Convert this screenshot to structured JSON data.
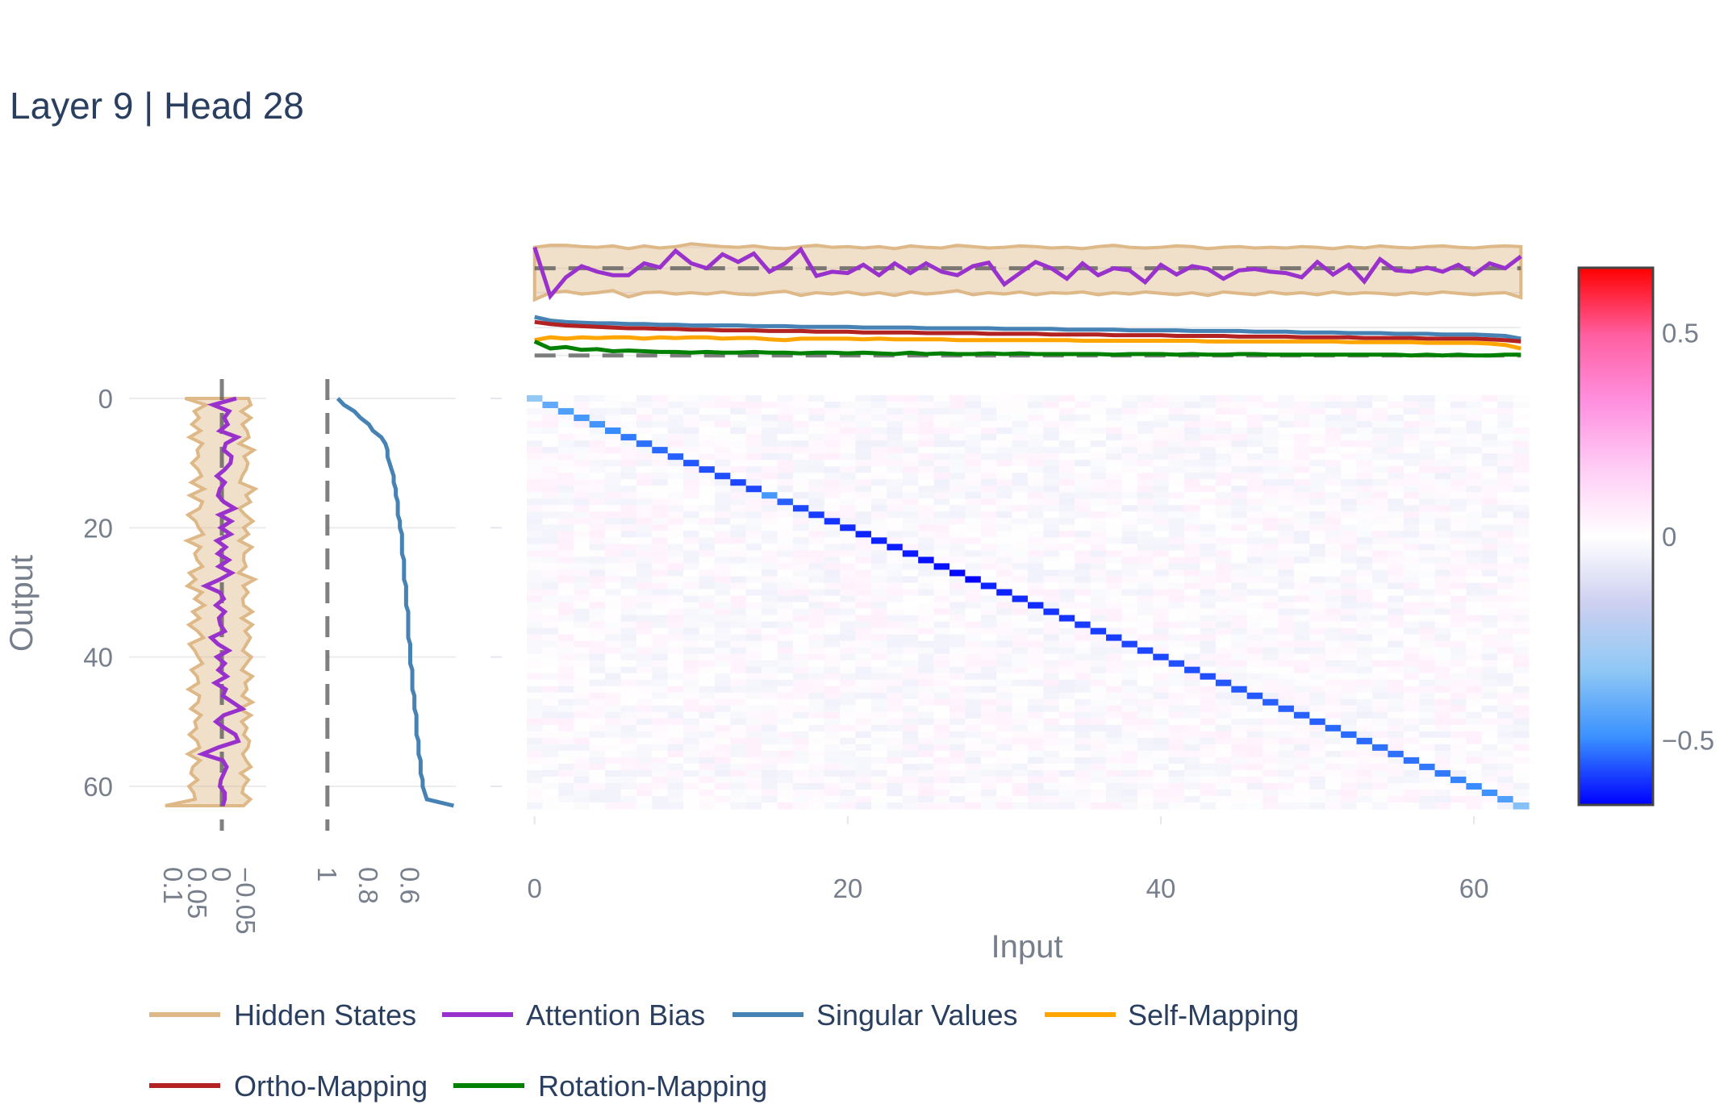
{
  "title": "Layer 9 | Head 28",
  "chart_data": {
    "type": "heatmap",
    "title": "Layer 9 | Head 28",
    "heatmap": {
      "xlabel": "Input",
      "ylabel": "Output",
      "size": 64,
      "x_ticks": [
        0,
        20,
        40,
        60
      ],
      "y_ticks": [
        0,
        20,
        40,
        60
      ],
      "diagonal_values": [
        -0.32,
        -0.42,
        -0.45,
        -0.47,
        -0.48,
        -0.5,
        -0.52,
        -0.53,
        -0.54,
        -0.55,
        -0.56,
        -0.57,
        -0.57,
        -0.58,
        -0.58,
        -0.47,
        -0.55,
        -0.58,
        -0.59,
        -0.6,
        -0.61,
        -0.62,
        -0.62,
        -0.63,
        -0.63,
        -0.64,
        -0.64,
        -0.65,
        -0.66,
        -0.62,
        -0.62,
        -0.61,
        -0.61,
        -0.6,
        -0.6,
        -0.59,
        -0.59,
        -0.59,
        -0.58,
        -0.58,
        -0.58,
        -0.57,
        -0.57,
        -0.57,
        -0.56,
        -0.56,
        -0.56,
        -0.55,
        -0.55,
        -0.55,
        -0.55,
        -0.54,
        -0.54,
        -0.54,
        -0.53,
        -0.53,
        -0.53,
        -0.52,
        -0.52,
        -0.51,
        -0.5,
        -0.49,
        -0.45,
        -0.35
      ],
      "offdiag_range": [
        -0.05,
        0.05
      ]
    },
    "colorbar": {
      "range": [
        -0.66,
        0.66
      ],
      "ticks": [
        0.5,
        0,
        -0.5
      ],
      "tick_labels": [
        "0.5",
        "0",
        "−0.5"
      ],
      "colorscale": [
        "#0000ff",
        "#3a90ff",
        "#8fc8f5",
        "#cdd0f0",
        "#ffffff",
        "#ffcdf5",
        "#ff90e0",
        "#ff5fa0",
        "#ff0000"
      ]
    },
    "top_panel": {
      "x": "index 0-63",
      "series": [
        {
          "name": "Singular Values",
          "color": "#4682b4",
          "values": [
            0.95,
            0.9,
            0.88,
            0.87,
            0.86,
            0.86,
            0.85,
            0.85,
            0.84,
            0.84,
            0.83,
            0.83,
            0.83,
            0.83,
            0.82,
            0.82,
            0.82,
            0.81,
            0.81,
            0.81,
            0.81,
            0.8,
            0.8,
            0.8,
            0.8,
            0.79,
            0.79,
            0.79,
            0.79,
            0.79,
            0.78,
            0.78,
            0.78,
            0.78,
            0.77,
            0.77,
            0.77,
            0.77,
            0.76,
            0.76,
            0.76,
            0.76,
            0.75,
            0.75,
            0.75,
            0.75,
            0.74,
            0.74,
            0.74,
            0.73,
            0.73,
            0.73,
            0.72,
            0.72,
            0.72,
            0.71,
            0.71,
            0.71,
            0.7,
            0.7,
            0.7,
            0.69,
            0.68,
            0.64
          ]
        },
        {
          "name": "Ortho-Mapping",
          "color": "#b22222",
          "values": [
            0.88,
            0.85,
            0.83,
            0.82,
            0.81,
            0.8,
            0.79,
            0.79,
            0.78,
            0.78,
            0.77,
            0.77,
            0.76,
            0.76,
            0.76,
            0.75,
            0.75,
            0.75,
            0.74,
            0.74,
            0.74,
            0.73,
            0.73,
            0.73,
            0.73,
            0.72,
            0.72,
            0.72,
            0.72,
            0.71,
            0.71,
            0.71,
            0.71,
            0.7,
            0.7,
            0.7,
            0.7,
            0.69,
            0.69,
            0.69,
            0.69,
            0.68,
            0.68,
            0.68,
            0.68,
            0.67,
            0.67,
            0.67,
            0.67,
            0.66,
            0.66,
            0.66,
            0.66,
            0.65,
            0.65,
            0.65,
            0.65,
            0.64,
            0.64,
            0.64,
            0.64,
            0.63,
            0.62,
            0.6
          ]
        },
        {
          "name": "Self-Mapping",
          "color": "#ffa500",
          "values": [
            0.62,
            0.66,
            0.64,
            0.66,
            0.65,
            0.66,
            0.66,
            0.64,
            0.66,
            0.65,
            0.66,
            0.66,
            0.64,
            0.65,
            0.65,
            0.63,
            0.62,
            0.64,
            0.64,
            0.64,
            0.64,
            0.63,
            0.64,
            0.63,
            0.63,
            0.63,
            0.63,
            0.62,
            0.62,
            0.62,
            0.62,
            0.62,
            0.62,
            0.62,
            0.62,
            0.61,
            0.61,
            0.61,
            0.61,
            0.61,
            0.61,
            0.61,
            0.61,
            0.6,
            0.6,
            0.6,
            0.6,
            0.6,
            0.6,
            0.6,
            0.6,
            0.6,
            0.59,
            0.59,
            0.59,
            0.59,
            0.59,
            0.58,
            0.58,
            0.58,
            0.58,
            0.57,
            0.55,
            0.5
          ]
        },
        {
          "name": "Rotation-Mapping",
          "color": "#008000",
          "values": [
            0.6,
            0.5,
            0.52,
            0.48,
            0.49,
            0.46,
            0.47,
            0.46,
            0.45,
            0.45,
            0.44,
            0.45,
            0.44,
            0.44,
            0.45,
            0.44,
            0.44,
            0.43,
            0.44,
            0.44,
            0.43,
            0.44,
            0.43,
            0.42,
            0.44,
            0.42,
            0.43,
            0.42,
            0.42,
            0.43,
            0.42,
            0.43,
            0.42,
            0.42,
            0.42,
            0.42,
            0.42,
            0.41,
            0.42,
            0.42,
            0.42,
            0.41,
            0.42,
            0.41,
            0.41,
            0.42,
            0.42,
            0.41,
            0.41,
            0.41,
            0.41,
            0.41,
            0.41,
            0.41,
            0.41,
            0.41,
            0.4,
            0.41,
            0.4,
            0.41,
            0.4,
            0.4,
            0.41,
            0.41
          ]
        }
      ],
      "band_series": "Hidden States",
      "band_color": "#deb887",
      "band_upper": [
        1.95,
        1.98,
        1.98,
        1.96,
        1.95,
        1.97,
        1.93,
        1.97,
        1.94,
        1.96,
        2.0,
        1.98,
        1.96,
        1.95,
        1.97,
        1.94,
        1.93,
        1.96,
        1.98,
        1.95,
        1.96,
        1.94,
        1.96,
        1.93,
        1.97,
        1.95,
        1.94,
        1.98,
        1.96,
        1.94,
        1.95,
        1.97,
        1.96,
        1.94,
        1.95,
        1.93,
        1.96,
        1.98,
        1.95,
        1.94,
        1.95,
        1.97,
        1.96,
        1.93,
        1.95,
        1.96,
        1.94,
        1.95,
        1.94,
        1.96,
        1.95,
        1.93,
        1.96,
        1.94,
        1.97,
        1.95,
        1.94,
        1.96,
        1.97,
        1.95,
        1.94,
        1.96,
        1.97,
        1.96
      ],
      "band_lower": [
        1.2,
        1.3,
        1.32,
        1.28,
        1.3,
        1.33,
        1.24,
        1.3,
        1.31,
        1.28,
        1.3,
        1.28,
        1.31,
        1.28,
        1.27,
        1.3,
        1.32,
        1.26,
        1.3,
        1.28,
        1.31,
        1.27,
        1.3,
        1.26,
        1.31,
        1.28,
        1.3,
        1.33,
        1.27,
        1.3,
        1.28,
        1.31,
        1.27,
        1.3,
        1.29,
        1.31,
        1.27,
        1.3,
        1.28,
        1.31,
        1.29,
        1.27,
        1.3,
        1.26,
        1.31,
        1.29,
        1.27,
        1.31,
        1.28,
        1.3,
        1.27,
        1.31,
        1.28,
        1.3,
        1.29,
        1.27,
        1.3,
        1.28,
        1.31,
        1.29,
        1.27,
        1.29,
        1.3,
        1.23
      ],
      "bias_series": "Attention Bias",
      "bias_color": "#9932cc",
      "bias_values": [
        1.95,
        1.25,
        1.52,
        1.68,
        1.6,
        1.55,
        1.55,
        1.72,
        1.66,
        1.9,
        1.72,
        1.65,
        1.85,
        1.74,
        1.86,
        1.6,
        1.72,
        1.92,
        1.54,
        1.6,
        1.58,
        1.7,
        1.55,
        1.72,
        1.58,
        1.72,
        1.6,
        1.55,
        1.68,
        1.73,
        1.42,
        1.58,
        1.74,
        1.65,
        1.5,
        1.72,
        1.55,
        1.65,
        1.62,
        1.45,
        1.7,
        1.56,
        1.68,
        1.64,
        1.5,
        1.62,
        1.64,
        1.6,
        1.58,
        1.52,
        1.74,
        1.56,
        1.7,
        1.46,
        1.78,
        1.62,
        1.6,
        1.66,
        1.6,
        1.7,
        1.56,
        1.72,
        1.65,
        1.82
      ]
    },
    "left_panel_1": {
      "x_ticks": [
        0.1,
        0.05,
        0,
        -0.05
      ],
      "x_tick_labels": [
        "0.1",
        "0.05",
        "0",
        "−0.05"
      ],
      "xlim": [
        0.12,
        -0.075
      ],
      "hidden_lower": [
        0.076,
        0.033,
        0.057,
        0.047,
        0.062,
        0.044,
        0.067,
        0.04,
        0.051,
        0.048,
        0.062,
        0.049,
        0.042,
        0.063,
        0.037,
        0.066,
        0.04,
        0.046,
        0.07,
        0.054,
        0.048,
        0.038,
        0.072,
        0.044,
        0.056,
        0.051,
        0.04,
        0.067,
        0.054,
        0.071,
        0.041,
        0.056,
        0.036,
        0.06,
        0.046,
        0.068,
        0.05,
        0.038,
        0.067,
        0.056,
        0.049,
        0.04,
        0.063,
        0.051,
        0.048,
        0.069,
        0.046,
        0.049,
        0.064,
        0.043,
        0.056,
        0.052,
        0.067,
        0.051,
        0.046,
        0.07,
        0.045,
        0.06,
        0.064,
        0.05,
        0.068,
        0.058,
        0.055,
        0.117
      ],
      "hidden_upper": [
        -0.055,
        -0.06,
        -0.04,
        -0.06,
        -0.042,
        -0.052,
        -0.056,
        -0.036,
        -0.066,
        -0.046,
        -0.054,
        -0.05,
        -0.042,
        -0.037,
        -0.069,
        -0.05,
        -0.059,
        -0.036,
        -0.048,
        -0.064,
        -0.045,
        -0.055,
        -0.036,
        -0.062,
        -0.046,
        -0.045,
        -0.05,
        -0.035,
        -0.068,
        -0.044,
        -0.054,
        -0.043,
        -0.045,
        -0.063,
        -0.041,
        -0.063,
        -0.048,
        -0.059,
        -0.051,
        -0.043,
        -0.061,
        -0.051,
        -0.041,
        -0.063,
        -0.048,
        -0.052,
        -0.042,
        -0.063,
        -0.036,
        -0.06,
        -0.041,
        -0.052,
        -0.045,
        -0.057,
        -0.054,
        -0.043,
        -0.05,
        -0.06,
        -0.039,
        -0.055,
        -0.045,
        -0.042,
        -0.059,
        -0.045
      ],
      "bias_values": [
        -0.03,
        0.018,
        -0.015,
        -0.005,
        -0.012,
        0.004,
        -0.032,
        -0.008,
        -0.004,
        -0.02,
        -0.018,
        -0.006,
        0.01,
        -0.006,
        0.004,
        0.008,
        -0.004,
        -0.026,
        0.005,
        -0.019,
        0.002,
        -0.018,
        0.01,
        -0.008,
        0.008,
        -0.014,
        0.006,
        -0.02,
        0.004,
        0.034,
        0.004,
        -0.004,
        0.012,
        -0.006,
        0.006,
        0.003,
        -0.006,
        0.022,
        0.008,
        -0.014,
        0.01,
        -0.006,
        0.007,
        -0.01,
        0.014,
        -0.008,
        -0.002,
        -0.022,
        -0.042,
        -0.004,
        0.012,
        -0.006,
        -0.028,
        -0.034,
        0.008,
        0.04,
        -0.002,
        -0.01,
        -0.004,
        0.002,
        0.004,
        -0.006,
        -0.006,
        -0.002
      ],
      "dashed_at": 0
    },
    "left_panel_2": {
      "x_ticks": [
        1,
        0.8,
        0.6
      ],
      "x_tick_labels": [
        "1",
        "0.8",
        "0.6"
      ],
      "xlim": [
        1.05,
        0.38
      ],
      "singular_values": [
        0.95,
        0.92,
        0.87,
        0.84,
        0.8,
        0.78,
        0.74,
        0.72,
        0.71,
        0.71,
        0.7,
        0.69,
        0.68,
        0.68,
        0.67,
        0.67,
        0.66,
        0.66,
        0.66,
        0.65,
        0.65,
        0.64,
        0.64,
        0.64,
        0.64,
        0.63,
        0.63,
        0.63,
        0.63,
        0.62,
        0.62,
        0.62,
        0.62,
        0.61,
        0.61,
        0.61,
        0.61,
        0.61,
        0.6,
        0.6,
        0.6,
        0.6,
        0.59,
        0.59,
        0.59,
        0.59,
        0.58,
        0.58,
        0.58,
        0.57,
        0.57,
        0.57,
        0.57,
        0.56,
        0.56,
        0.56,
        0.55,
        0.55,
        0.55,
        0.54,
        0.54,
        0.53,
        0.52,
        0.39
      ],
      "dashed_at": 1
    },
    "legend": {
      "placement": "bottom",
      "items": [
        {
          "label": "Hidden States",
          "color": "#deb887"
        },
        {
          "label": "Attention Bias",
          "color": "#9932cc"
        },
        {
          "label": "Singular Values",
          "color": "#4682b4"
        },
        {
          "label": "Self-Mapping",
          "color": "#ffa500"
        },
        {
          "label": "Ortho-Mapping",
          "color": "#b22222"
        },
        {
          "label": "Rotation-Mapping",
          "color": "#008000"
        }
      ]
    }
  }
}
